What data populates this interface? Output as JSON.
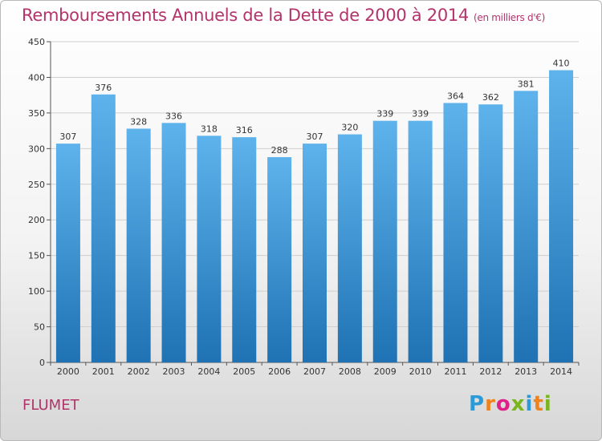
{
  "title": "Remboursements Annuels de la Dette de 2000 à 2014",
  "unit": "(en milliers d'€)",
  "commune": "FLUMET",
  "logo": {
    "letters": [
      "P",
      "r",
      "o",
      "x",
      "i",
      "t",
      "i"
    ],
    "colors": [
      "#2b9ad7",
      "#f0821e",
      "#e0218a",
      "#7ab51d",
      "#2b9ad7",
      "#f0821e",
      "#7ab51d"
    ]
  },
  "colors": {
    "bar_top": "#5eb3ec",
    "bar_bottom": "#1f72b3",
    "title": "#b3336a",
    "grid": "#cfcfcf"
  },
  "chart_data": {
    "type": "bar",
    "categories": [
      "2000",
      "2001",
      "2002",
      "2003",
      "2004",
      "2005",
      "2006",
      "2007",
      "2008",
      "2009",
      "2010",
      "2011",
      "2012",
      "2013",
      "2014"
    ],
    "values": [
      307,
      376,
      328,
      336,
      318,
      316,
      288,
      307,
      320,
      339,
      339,
      364,
      362,
      381,
      410
    ],
    "ylim": [
      0,
      450
    ],
    "yticks": [
      0,
      50,
      100,
      150,
      200,
      250,
      300,
      350,
      400,
      450
    ],
    "grid": true,
    "title": "Remboursements Annuels de la Dette de 2000 à 2014",
    "unit": "(en milliers d'€)"
  }
}
